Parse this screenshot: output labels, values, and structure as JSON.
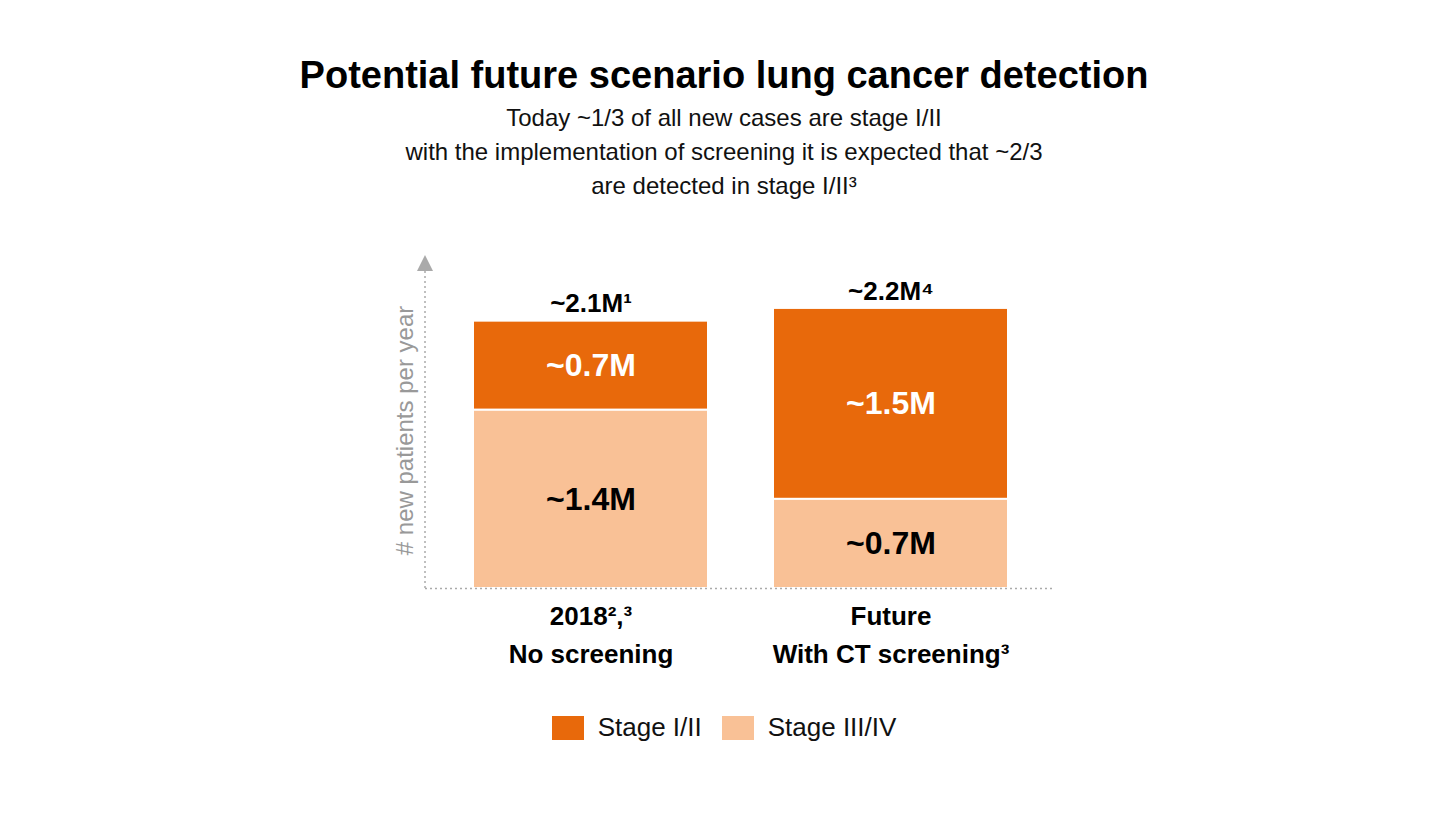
{
  "chart_data": {
    "type": "bar",
    "stacked": true,
    "title": "Potential future scenario lung cancer detection",
    "subtitle": [
      "Today ~1/3 of all new cases are stage I/II",
      "with the implementation of screening it is expected that ~2/3",
      "are detected in stage I/II³"
    ],
    "y_label": "# new patients per year",
    "categories": [
      "2018²,³",
      "Future"
    ],
    "category_sublabels": [
      "No screening",
      "With CT screening³"
    ],
    "series": [
      {
        "name": "Stage I/II",
        "color": "#e8690b",
        "values": [
          0.7,
          1.5
        ],
        "value_labels": [
          "~0.7M",
          "~1.5M"
        ]
      },
      {
        "name": "Stage III/IV",
        "color": "#f9c196",
        "values": [
          1.4,
          0.7
        ],
        "value_labels": [
          "~1.4M",
          "~0.7M"
        ]
      }
    ],
    "totals": [
      2.1,
      2.2
    ],
    "total_labels": [
      "~2.1M¹",
      "~2.2M⁴"
    ],
    "ylim": [
      0,
      2.6
    ],
    "yticks": [],
    "tick_labels": false,
    "data_labels": true,
    "legend": "bottom"
  }
}
